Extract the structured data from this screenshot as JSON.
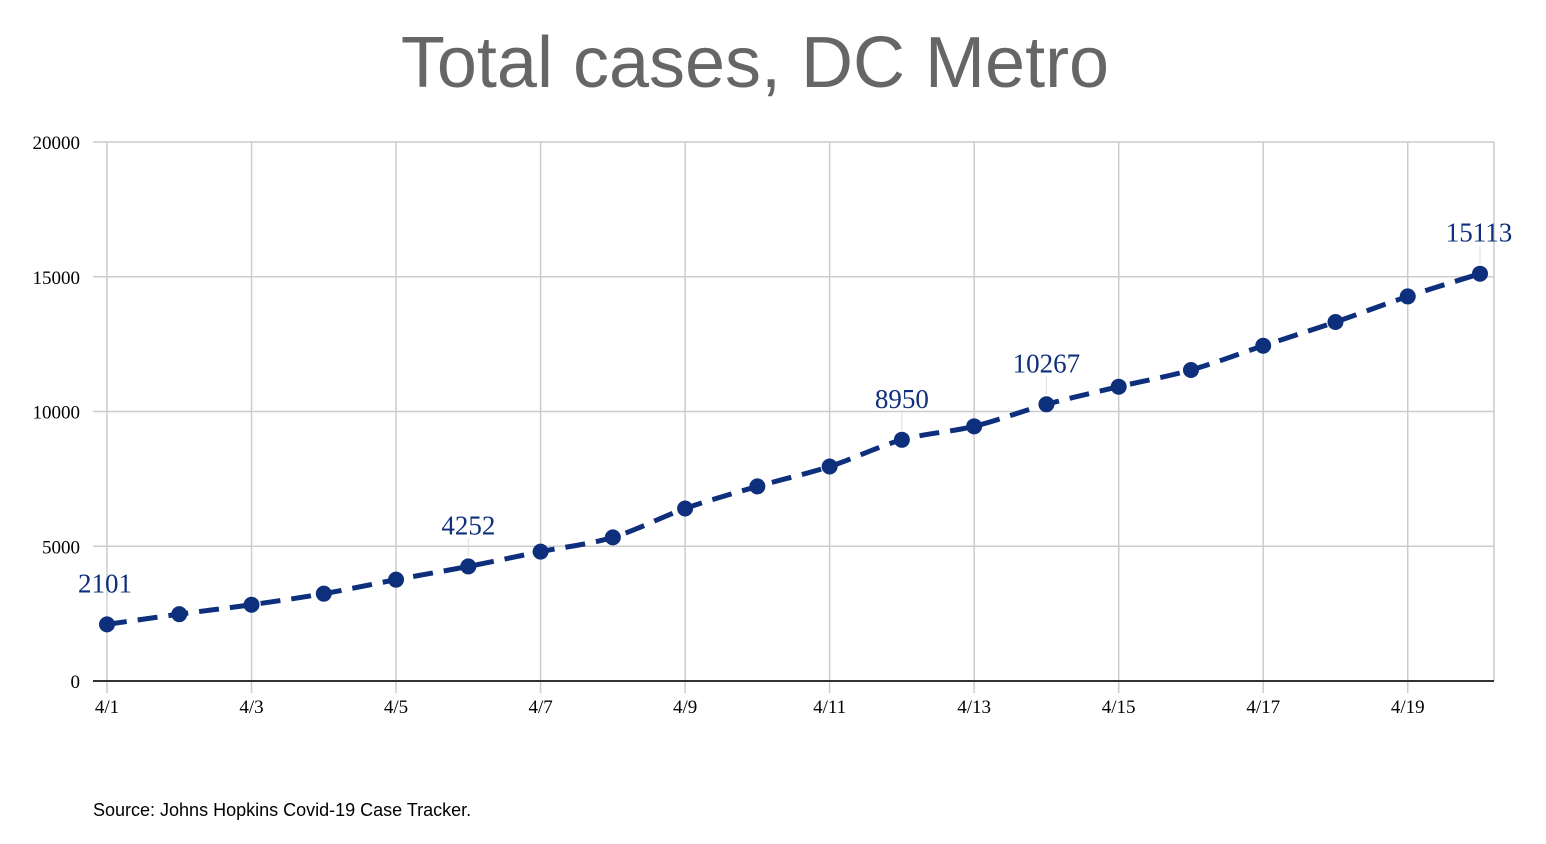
{
  "chart_data": {
    "type": "line",
    "title": "Total cases, DC Metro",
    "xlabel": "",
    "ylabel": "",
    "x": [
      "4/1",
      "4/2",
      "4/3",
      "4/4",
      "4/5",
      "4/6",
      "4/7",
      "4/8",
      "4/9",
      "4/10",
      "4/11",
      "4/12",
      "4/13",
      "4/14",
      "4/15",
      "4/16",
      "4/17",
      "4/18",
      "4/19",
      "4/20"
    ],
    "x_tick_labels": [
      "4/1",
      "4/3",
      "4/5",
      "4/7",
      "4/9",
      "4/11",
      "4/13",
      "4/15",
      "4/17",
      "4/19"
    ],
    "ylim": [
      0,
      20000
    ],
    "y_ticks": [
      0,
      5000,
      10000,
      15000,
      20000
    ],
    "series": [
      {
        "values": [
          2101,
          2480,
          2830,
          3240,
          3760,
          4252,
          4800,
          5330,
          6400,
          7220,
          7960,
          8950,
          9450,
          10267,
          10920,
          11540,
          12440,
          13320,
          14270,
          15113
        ],
        "line_style": "dashed",
        "marker": "circle"
      }
    ],
    "data_labels": [
      {
        "x": "4/1",
        "text": "2101"
      },
      {
        "x": "4/6",
        "text": "4252"
      },
      {
        "x": "4/12",
        "text": "8950"
      },
      {
        "x": "4/14",
        "text": "10267"
      },
      {
        "x": "4/20",
        "text": "15113"
      }
    ],
    "grid": true,
    "legend": "none",
    "colors": {
      "series": "#0e2f7c",
      "grid": "#cccccc",
      "axis": "#333333",
      "title": "#666666"
    }
  },
  "footer": {
    "source": "Source: Johns Hopkins Covid-19 Case Tracker."
  }
}
